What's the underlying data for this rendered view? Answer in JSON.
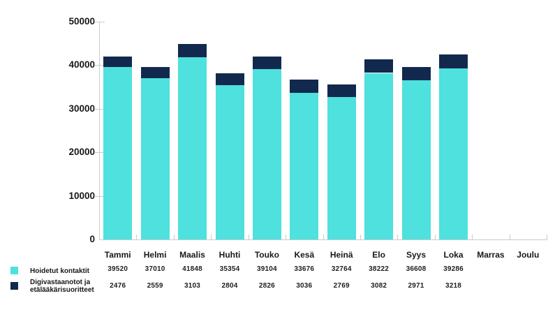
{
  "chart_data": {
    "type": "bar",
    "stacked": true,
    "title": "",
    "categories": [
      "Tammi",
      "Helmi",
      "Maalis",
      "Huhti",
      "Touko",
      "Kesä",
      "Heinä",
      "Elo",
      "Syys",
      "Loka",
      "Marras",
      "Joulu"
    ],
    "series": [
      {
        "name": "Hoidetut kontaktit",
        "color": "#4EE1DD",
        "values": [
          39520,
          37010,
          41848,
          35354,
          39104,
          33676,
          32764,
          38222,
          36608,
          39286,
          null,
          null
        ]
      },
      {
        "name": "Digivastaanotot ja etälääkärisuoritteet",
        "color": "#12294E",
        "values": [
          2476,
          2559,
          3103,
          2804,
          2826,
          3036,
          2769,
          3082,
          2971,
          3218,
          null,
          null
        ]
      }
    ],
    "ylim": [
      0,
      50000
    ],
    "y_ticks": [
      0,
      10000,
      20000,
      30000,
      40000,
      50000
    ],
    "grid": false,
    "legend_position": "bottom-left",
    "value_table_shown": true,
    "axis_color": "#c9cbcd",
    "text_color": "#17181c"
  }
}
